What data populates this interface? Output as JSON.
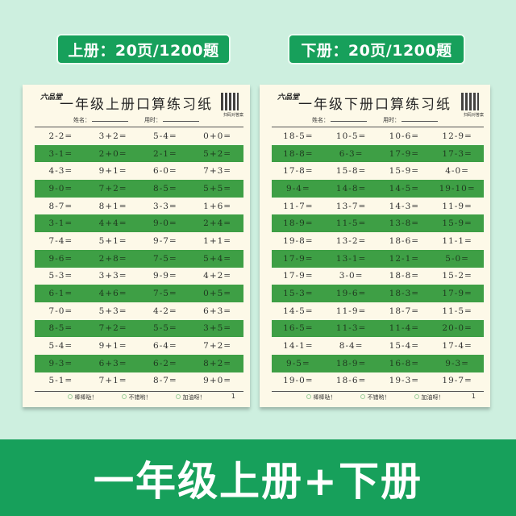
{
  "badges": {
    "left": "上册：20页/1200题",
    "right": "下册：20页/1200题"
  },
  "banner": "一年级上册+下册",
  "colors": {
    "background": "#cdefdf",
    "brand_green": "#17a05b",
    "row_green": "#3e9f45",
    "paper": "#fdf9e8"
  },
  "sheets": [
    {
      "logo": "六品堂",
      "title": "一年级上册口算练习纸",
      "qr_caption": "扫码对答案",
      "name_label": "姓名：",
      "time_label": "用时：",
      "rows": [
        [
          "2-2=",
          "3+2=",
          "5-4=",
          "0+0="
        ],
        [
          "3-1=",
          "2+0=",
          "2-1=",
          "5+2="
        ],
        [
          "4-3=",
          "9+1=",
          "6-0=",
          "7+3="
        ],
        [
          "9-0=",
          "7+2=",
          "8-5=",
          "5+5="
        ],
        [
          "8-7=",
          "8+1=",
          "3-3=",
          "1+6="
        ],
        [
          "3-1=",
          "4+4=",
          "9-0=",
          "2+4="
        ],
        [
          "7-4=",
          "5+1=",
          "9-7=",
          "1+1="
        ],
        [
          "9-6=",
          "2+8=",
          "7-5=",
          "5+4="
        ],
        [
          "5-3=",
          "3+3=",
          "9-9=",
          "4+2="
        ],
        [
          "6-1=",
          "4+6=",
          "7-5=",
          "0+5="
        ],
        [
          "7-0=",
          "5+3=",
          "4-2=",
          "6+3="
        ],
        [
          "8-5=",
          "7+2=",
          "5-5=",
          "3+5="
        ],
        [
          "5-4=",
          "9+1=",
          "6-4=",
          "7+2="
        ],
        [
          "9-3=",
          "6+3=",
          "6-2=",
          "8+2="
        ],
        [
          "5-1=",
          "7+1=",
          "8-7=",
          "9+0="
        ]
      ],
      "footer": [
        "棒棒哒！",
        "不错哟！",
        "加油呀！"
      ],
      "page": "1"
    },
    {
      "logo": "六品堂",
      "title": "一年级下册口算练习纸",
      "qr_caption": "扫码对答案",
      "name_label": "姓名：",
      "time_label": "用时：",
      "rows": [
        [
          "18-5=",
          "10-5=",
          "10-6=",
          "12-9="
        ],
        [
          "18-8=",
          "6-3=",
          "17-9=",
          "17-3="
        ],
        [
          "17-8=",
          "15-8=",
          "15-9=",
          "4-0="
        ],
        [
          "9-4=",
          "14-8=",
          "14-5=",
          "19-10="
        ],
        [
          "11-7=",
          "13-7=",
          "14-3=",
          "11-9="
        ],
        [
          "18-9=",
          "11-5=",
          "13-8=",
          "15-9="
        ],
        [
          "19-8=",
          "13-2=",
          "18-6=",
          "11-1="
        ],
        [
          "17-9=",
          "13-1=",
          "12-1=",
          "5-0="
        ],
        [
          "17-9=",
          "3-0=",
          "18-8=",
          "15-2="
        ],
        [
          "15-3=",
          "19-6=",
          "18-3=",
          "17-9="
        ],
        [
          "14-5=",
          "11-9=",
          "18-7=",
          "11-5="
        ],
        [
          "16-5=",
          "11-3=",
          "11-4=",
          "20-0="
        ],
        [
          "14-1=",
          "8-4=",
          "15-4=",
          "17-4="
        ],
        [
          "9-5=",
          "18-9=",
          "16-8=",
          "9-3="
        ],
        [
          "19-0=",
          "18-6=",
          "19-3=",
          "19-7="
        ]
      ],
      "footer": [
        "棒棒哒！",
        "不错哟！",
        "加油呀！"
      ],
      "page": "1"
    }
  ]
}
